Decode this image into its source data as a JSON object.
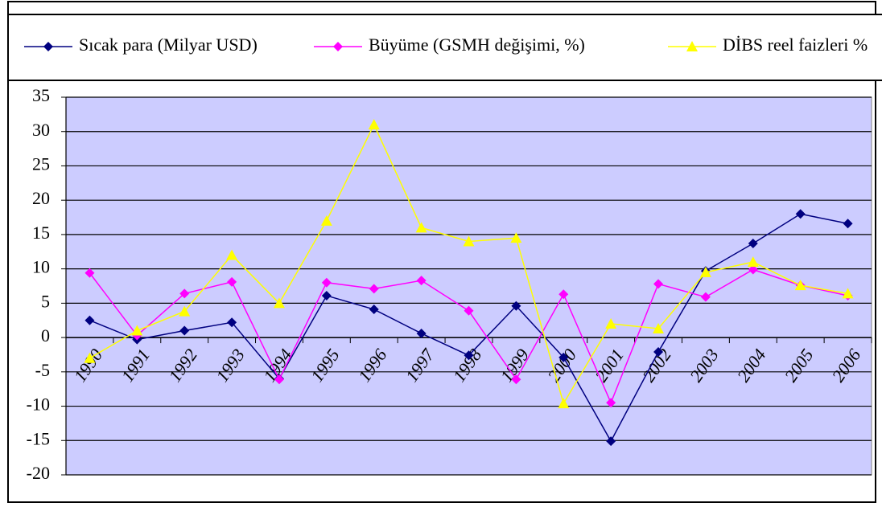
{
  "chart_data": {
    "type": "line",
    "categories": [
      "1990",
      "1991",
      "1992",
      "1993",
      "1994",
      "1995",
      "1996",
      "1997",
      "1998",
      "1999",
      "2000",
      "2001",
      "2002",
      "2003",
      "2004",
      "2005",
      "2006"
    ],
    "series": [
      {
        "name": "Sıcak para (Milyar USD)",
        "color": "#000080",
        "marker": "diamond",
        "values": [
          2.5,
          -0.3,
          1,
          2.2,
          -6,
          6.1,
          4.1,
          0.6,
          -2.6,
          4.6,
          -2.9,
          -15.1,
          -2.1,
          9.7,
          13.7,
          18,
          16.6
        ]
      },
      {
        "name": "Büyüme (GSMH değişimi, %)",
        "color": "#ff00ff",
        "marker": "diamond",
        "values": [
          9.4,
          0.3,
          6.4,
          8.1,
          -6.1,
          8.0,
          7.1,
          8.3,
          3.9,
          -6.1,
          6.3,
          -9.5,
          7.8,
          5.9,
          9.9,
          7.6,
          6.1
        ]
      },
      {
        "name": "DİBS reel faizleri %",
        "color": "#ffff00",
        "marker": "triangle",
        "values": [
          -3,
          1,
          3.8,
          12,
          5,
          17,
          31,
          16,
          14,
          14.5,
          -9.6,
          2,
          1.3,
          9.5,
          11,
          7.6,
          6.4
        ]
      }
    ],
    "ylim": [
      -20,
      35
    ],
    "yticks": [
      -20,
      -15,
      -10,
      -5,
      0,
      5,
      10,
      15,
      20,
      25,
      30,
      35
    ],
    "grid": true
  }
}
